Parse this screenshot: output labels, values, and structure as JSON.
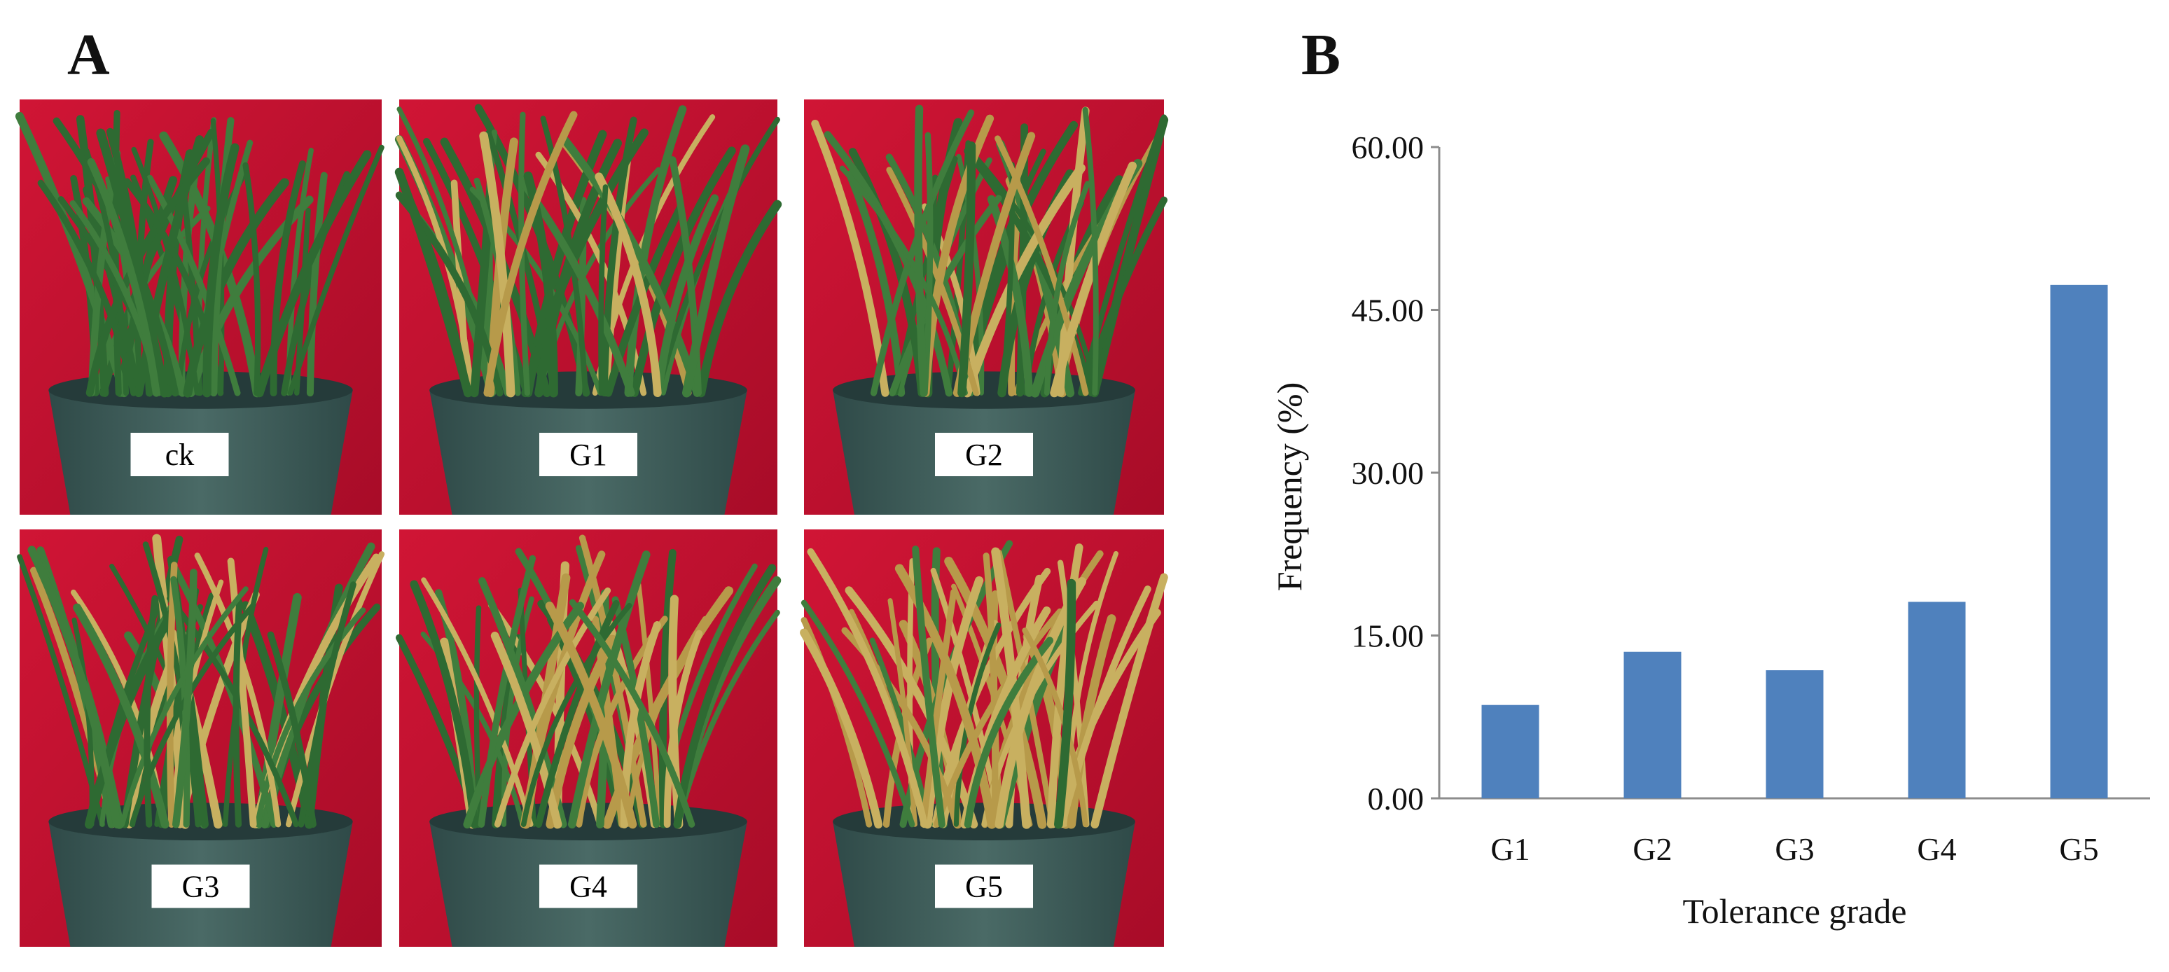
{
  "panels": {
    "a": "A",
    "b": "B"
  },
  "photos": [
    {
      "label": "ck"
    },
    {
      "label": "G1"
    },
    {
      "label": "G2"
    },
    {
      "label": "G3"
    },
    {
      "label": "G4"
    },
    {
      "label": "G5"
    }
  ],
  "colors": {
    "background_red": "#c8102e",
    "bar": "#4f81bd",
    "leaf": "#2f6b2f",
    "pot": "#3e5a58"
  },
  "chart_data": {
    "type": "bar",
    "title": "",
    "categories": [
      "G1",
      "G2",
      "G3",
      "G4",
      "G5"
    ],
    "values": [
      8.6,
      13.5,
      11.8,
      18.1,
      47.3
    ],
    "xlabel": "Tolerance grade",
    "ylabel": "Frequency (%)",
    "ylim": [
      0,
      60
    ],
    "yticks": [
      "0.00",
      "15.00",
      "30.00",
      "45.00",
      "60.00"
    ],
    "ytick_values": [
      0,
      15,
      30,
      45,
      60
    ],
    "grid": false,
    "legend": "none"
  }
}
